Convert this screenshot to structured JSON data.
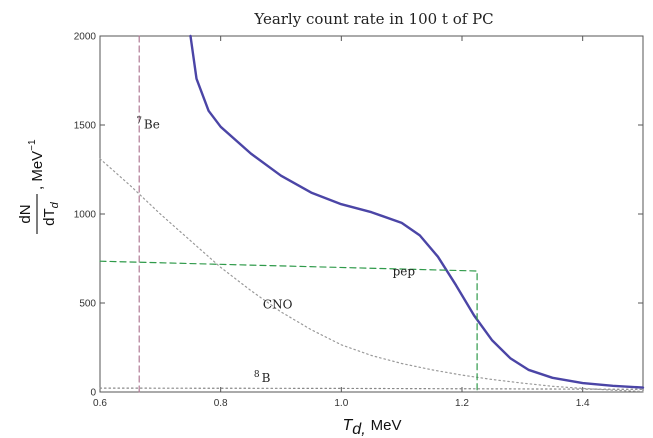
{
  "chart_data": {
    "type": "line",
    "title": "Yearly count rate in 100 t of PC",
    "xlabel_var": "T",
    "xlabel_sub": "d,",
    "xlabel_unit": "MeV",
    "ylabel_num": "dN",
    "ylabel_den_var": "dT",
    "ylabel_den_sub": "d",
    "ylabel_unit": ", MeV",
    "ylabel_unit_sup": "−1",
    "xlim": [
      0.6,
      1.5
    ],
    "ylim": [
      0,
      2000
    ],
    "xticks": [
      {
        "value": 0.6,
        "label": "0.6"
      },
      {
        "value": 0.8,
        "label": "0.8"
      },
      {
        "value": 1.0,
        "label": "1.0"
      },
      {
        "value": 1.2,
        "label": "1.2"
      },
      {
        "value": 1.4,
        "label": "1.4"
      }
    ],
    "yticks": [
      {
        "value": 0,
        "label": "0"
      },
      {
        "value": 500,
        "label": "500"
      },
      {
        "value": 1000,
        "label": "1000"
      },
      {
        "value": 1500,
        "label": "1500"
      },
      {
        "value": 2000,
        "label": "2000"
      }
    ],
    "series": [
      {
        "key": "total",
        "style": "solid",
        "color": "#4b45a6",
        "x": [
          0.75,
          0.76,
          0.78,
          0.8,
          0.85,
          0.9,
          0.95,
          1.0,
          1.05,
          1.1,
          1.13,
          1.16,
          1.19,
          1.22,
          1.25,
          1.28,
          1.31,
          1.35,
          1.4,
          1.45,
          1.5
        ],
        "y": [
          2000,
          1760,
          1580,
          1490,
          1340,
          1215,
          1120,
          1055,
          1010,
          950,
          880,
          760,
          600,
          430,
          290,
          190,
          125,
          80,
          50,
          35,
          25
        ]
      },
      {
        "key": "be7",
        "name_sup": "7",
        "name": "Be",
        "style": "dashed",
        "color": "#b07a95",
        "x": [
          0.665,
          0.665
        ],
        "y": [
          0,
          2000
        ]
      },
      {
        "key": "cno",
        "name": "CNO",
        "style": "dotted",
        "color": "#9a9a9a",
        "x": [
          0.6,
          0.65,
          0.7,
          0.75,
          0.8,
          0.85,
          0.9,
          0.95,
          1.0,
          1.05,
          1.1,
          1.15,
          1.2,
          1.25,
          1.3,
          1.35,
          1.4,
          1.45,
          1.5
        ],
        "y": [
          1310,
          1160,
          1000,
          850,
          700,
          570,
          450,
          350,
          265,
          205,
          160,
          125,
          95,
          70,
          50,
          32,
          20,
          10,
          3
        ]
      },
      {
        "key": "pep",
        "name": "pep",
        "style": "dashed",
        "color": "#2f9a4a",
        "x": [
          0.6,
          1.225,
          1.225
        ],
        "y": [
          735,
          680,
          0
        ]
      },
      {
        "key": "b8",
        "name_sup": "8",
        "name": "B",
        "style": "dotted",
        "color": "#888888",
        "x": [
          0.6,
          1.0,
          1.5
        ],
        "y": [
          22,
          20,
          15
        ]
      }
    ],
    "labels": [
      {
        "series": "be7",
        "x": 0.66,
        "y": 1480
      },
      {
        "series": "cno",
        "x": 0.87,
        "y": 470
      },
      {
        "series": "pep",
        "x": 1.085,
        "y": 655
      },
      {
        "series": "b8",
        "x": 0.855,
        "y": 55
      }
    ]
  }
}
